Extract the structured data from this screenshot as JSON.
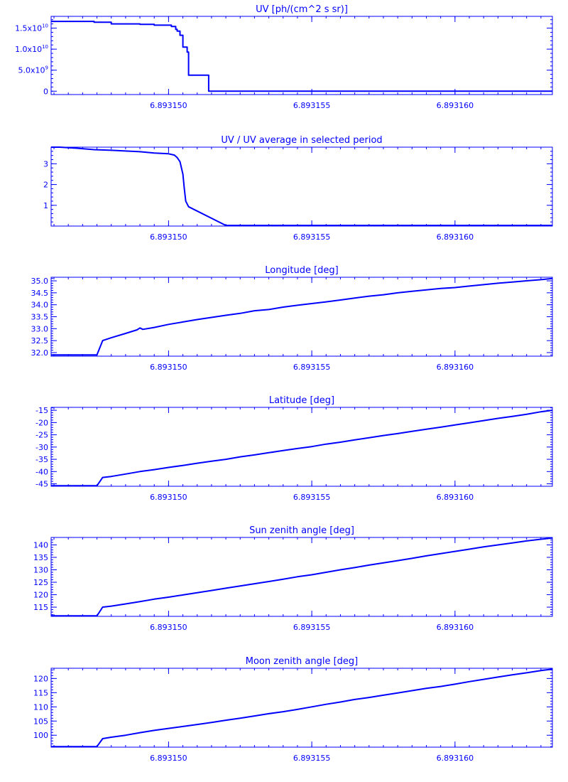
{
  "colors": {
    "line": "#0000ff",
    "background": "#ffffff"
  },
  "chart_data": [
    {
      "type": "line",
      "title": "UV [ph/(cm^2 s sr)]",
      "xlabel": "",
      "ylabel": "",
      "xlim": [
        6.8931459,
        6.8931634
      ],
      "ylim": [
        -800000000.0,
        17800000000.0
      ],
      "x_ticks": [
        6.89315,
        6.893155,
        6.89316
      ],
      "x_tick_labels": [
        "6.893150",
        "6.893155",
        "6.893160"
      ],
      "y_ticks": [
        0,
        5000000000.0,
        10000000000.0,
        15000000000.0
      ],
      "y_tick_labels": [
        {
          "text": "0",
          "mantissa": "0",
          "exponent": ""
        },
        {
          "text": "5.0x10^9",
          "mantissa": "5.0x10",
          "exponent": "9"
        },
        {
          "text": "1.0x10^10",
          "mantissa": "1.0x10",
          "exponent": "10"
        },
        {
          "text": "1.5x10^10",
          "mantissa": "1.5x10",
          "exponent": "10"
        }
      ],
      "grid": false,
      "step": true,
      "series": [
        {
          "x": [
            6.8931459,
            6.8931462,
            6.8931474,
            6.893148,
            6.893149,
            6.8931495,
            6.8931501,
            6.89315025,
            6.8931503,
            6.8931504,
            6.8931505,
            6.89315065,
            6.8931507,
            6.8931514,
            6.8931634
          ],
          "y": [
            16600000000.0,
            16600000000.0,
            16400000000.0,
            16000000000.0,
            15900000000.0,
            15700000000.0,
            15400000000.0,
            14700000000.0,
            14300000000.0,
            13300000000.0,
            10500000000.0,
            9300000000.0,
            3800000000.0,
            0,
            0
          ]
        }
      ]
    },
    {
      "type": "line",
      "title": "UV / UV average in selected period",
      "xlabel": "",
      "ylabel": "",
      "xlim": [
        6.8931459,
        6.8931634
      ],
      "ylim": [
        0,
        3.8
      ],
      "x_ticks": [
        6.89315,
        6.893155,
        6.89316
      ],
      "x_tick_labels": [
        "6.893150",
        "6.893155",
        "6.893160"
      ],
      "y_ticks": [
        1,
        2,
        3
      ],
      "y_tick_labels": [
        {
          "text": "1",
          "mantissa": "1",
          "exponent": ""
        },
        {
          "text": "2",
          "mantissa": "2",
          "exponent": ""
        },
        {
          "text": "3",
          "mantissa": "3",
          "exponent": ""
        }
      ],
      "grid": false,
      "series": [
        {
          "x": [
            6.8931459,
            6.8931462,
            6.8931468,
            6.8931474,
            6.893148,
            6.893149,
            6.8931495,
            6.89315,
            6.8931502,
            6.8931503,
            6.8931504,
            6.8931505,
            6.89315055,
            6.8931506,
            6.8931507,
            6.893152,
            6.8931634
          ],
          "y": [
            3.8,
            3.8,
            3.75,
            3.68,
            3.65,
            3.58,
            3.52,
            3.48,
            3.42,
            3.3,
            3.1,
            2.5,
            1.8,
            1.2,
            0.93,
            0.03,
            0.03
          ]
        }
      ]
    },
    {
      "type": "line",
      "title": "Longitude [deg]",
      "xlabel": "",
      "ylabel": "",
      "xlim": [
        6.8931459,
        6.8931634
      ],
      "ylim": [
        31.85,
        35.15
      ],
      "x_ticks": [
        6.89315,
        6.893155,
        6.89316
      ],
      "x_tick_labels": [
        "6.893150",
        "6.893155",
        "6.893160"
      ],
      "y_ticks": [
        32.0,
        32.5,
        33.0,
        33.5,
        34.0,
        34.5,
        35.0
      ],
      "y_tick_labels": [
        {
          "text": "32.0",
          "mantissa": "32.0",
          "exponent": ""
        },
        {
          "text": "32.5",
          "mantissa": "32.5",
          "exponent": ""
        },
        {
          "text": "33.0",
          "mantissa": "33.0",
          "exponent": ""
        },
        {
          "text": "33.5",
          "mantissa": "33.5",
          "exponent": ""
        },
        {
          "text": "34.0",
          "mantissa": "34.0",
          "exponent": ""
        },
        {
          "text": "34.5",
          "mantissa": "34.5",
          "exponent": ""
        },
        {
          "text": "35.0",
          "mantissa": "35.0",
          "exponent": ""
        }
      ],
      "grid": false,
      "series": [
        {
          "x": [
            6.8931459,
            6.8931475,
            6.8931477,
            6.893148,
            6.8931485,
            6.8931489,
            6.893149,
            6.8931491,
            6.8931495,
            6.89315,
            6.8931505,
            6.893151,
            6.8931515,
            6.893152,
            6.8931525,
            6.893153,
            6.8931535,
            6.893154,
            6.8931545,
            6.893155,
            6.8931555,
            6.893156,
            6.8931565,
            6.893157,
            6.8931575,
            6.893158,
            6.8931585,
            6.893159,
            6.8931595,
            6.89316,
            6.8931605,
            6.893161,
            6.8931615,
            6.893162,
            6.8931625,
            6.893163,
            6.8931634
          ],
          "y": [
            31.9,
            31.9,
            32.5,
            32.62,
            32.8,
            32.95,
            33.03,
            32.97,
            33.05,
            33.18,
            33.28,
            33.38,
            33.47,
            33.56,
            33.64,
            33.75,
            33.8,
            33.9,
            33.98,
            34.05,
            34.12,
            34.2,
            34.28,
            34.36,
            34.42,
            34.5,
            34.56,
            34.62,
            34.68,
            34.72,
            34.78,
            34.84,
            34.9,
            34.95,
            35.0,
            35.05,
            35.1
          ]
        }
      ]
    },
    {
      "type": "line",
      "title": "Latitude [deg]",
      "xlabel": "",
      "ylabel": "",
      "xlim": [
        6.8931459,
        6.8931634
      ],
      "ylim": [
        -46.0,
        -13.8
      ],
      "x_ticks": [
        6.89315,
        6.893155,
        6.89316
      ],
      "x_tick_labels": [
        "6.893150",
        "6.893155",
        "6.893160"
      ],
      "y_ticks": [
        -45,
        -40,
        -35,
        -30,
        -25,
        -20,
        -15
      ],
      "y_tick_labels": [
        {
          "text": "-45",
          "mantissa": "-45",
          "exponent": ""
        },
        {
          "text": "-40",
          "mantissa": "-40",
          "exponent": ""
        },
        {
          "text": "-35",
          "mantissa": "-35",
          "exponent": ""
        },
        {
          "text": "-30",
          "mantissa": "-30",
          "exponent": ""
        },
        {
          "text": "-25",
          "mantissa": "-25",
          "exponent": ""
        },
        {
          "text": "-20",
          "mantissa": "-20",
          "exponent": ""
        },
        {
          "text": "-15",
          "mantissa": "-15",
          "exponent": ""
        }
      ],
      "grid": false,
      "series": [
        {
          "x": [
            6.8931459,
            6.8931475,
            6.8931477,
            6.893148,
            6.8931485,
            6.893149,
            6.8931495,
            6.89315,
            6.8931505,
            6.893151,
            6.8931515,
            6.893152,
            6.8931525,
            6.893153,
            6.8931535,
            6.893154,
            6.8931545,
            6.893155,
            6.8931555,
            6.893156,
            6.8931565,
            6.893157,
            6.8931575,
            6.893158,
            6.8931585,
            6.893159,
            6.8931595,
            6.89316,
            6.8931605,
            6.893161,
            6.8931615,
            6.893162,
            6.8931625,
            6.893163,
            6.8931634
          ],
          "y": [
            -45.8,
            -45.8,
            -42.4,
            -42.0,
            -41.0,
            -40.0,
            -39.2,
            -38.3,
            -37.5,
            -36.6,
            -35.8,
            -35.0,
            -34.0,
            -33.2,
            -32.3,
            -31.4,
            -30.6,
            -29.8,
            -28.8,
            -28.0,
            -27.1,
            -26.2,
            -25.3,
            -24.5,
            -23.6,
            -22.7,
            -21.9,
            -21.0,
            -20.1,
            -19.2,
            -18.3,
            -17.5,
            -16.6,
            -15.6,
            -15.0
          ]
        }
      ]
    },
    {
      "type": "line",
      "title": "Sun zenith angle [deg]",
      "xlabel": "",
      "ylabel": "",
      "xlim": [
        6.8931459,
        6.8931634
      ],
      "ylim": [
        111.3,
        143
      ],
      "x_ticks": [
        6.89315,
        6.893155,
        6.89316
      ],
      "x_tick_labels": [
        "6.893150",
        "6.893155",
        "6.893160"
      ],
      "y_ticks": [
        115,
        120,
        125,
        130,
        135,
        140
      ],
      "y_tick_labels": [
        {
          "text": "115",
          "mantissa": "115",
          "exponent": ""
        },
        {
          "text": "120",
          "mantissa": "120",
          "exponent": ""
        },
        {
          "text": "125",
          "mantissa": "125",
          "exponent": ""
        },
        {
          "text": "130",
          "mantissa": "130",
          "exponent": ""
        },
        {
          "text": "135",
          "mantissa": "135",
          "exponent": ""
        },
        {
          "text": "140",
          "mantissa": "140",
          "exponent": ""
        }
      ],
      "grid": false,
      "series": [
        {
          "x": [
            6.8931459,
            6.8931475,
            6.8931477,
            6.893148,
            6.8931485,
            6.893149,
            6.8931495,
            6.89315,
            6.8931505,
            6.893151,
            6.8931515,
            6.893152,
            6.8931525,
            6.893153,
            6.8931535,
            6.893154,
            6.8931545,
            6.893155,
            6.8931555,
            6.893156,
            6.8931565,
            6.893157,
            6.8931575,
            6.893158,
            6.8931585,
            6.893159,
            6.8931595,
            6.89316,
            6.8931605,
            6.893161,
            6.8931615,
            6.893162,
            6.8931625,
            6.893163,
            6.8931634
          ],
          "y": [
            111.5,
            111.5,
            115.0,
            115.4,
            116.3,
            117.2,
            118.2,
            119.0,
            119.9,
            120.8,
            121.7,
            122.6,
            123.5,
            124.4,
            125.3,
            126.2,
            127.2,
            128.0,
            129.0,
            130.0,
            130.9,
            131.9,
            132.8,
            133.7,
            134.6,
            135.6,
            136.5,
            137.4,
            138.3,
            139.2,
            140.0,
            140.8,
            141.6,
            142.3,
            142.8
          ]
        }
      ]
    },
    {
      "type": "line",
      "title": "Moon zenith angle [deg]",
      "xlabel": "",
      "ylabel": "",
      "xlim": [
        6.8931459,
        6.8931634
      ],
      "ylim": [
        95.8,
        123.6
      ],
      "x_ticks": [
        6.89315,
        6.893155,
        6.89316
      ],
      "x_tick_labels": [
        "6.893150",
        "6.893155",
        "6.893160"
      ],
      "y_ticks": [
        100,
        105,
        110,
        115,
        120
      ],
      "y_tick_labels": [
        {
          "text": "100",
          "mantissa": "100",
          "exponent": ""
        },
        {
          "text": "105",
          "mantissa": "105",
          "exponent": ""
        },
        {
          "text": "110",
          "mantissa": "110",
          "exponent": ""
        },
        {
          "text": "115",
          "mantissa": "115",
          "exponent": ""
        },
        {
          "text": "120",
          "mantissa": "120",
          "exponent": ""
        }
      ],
      "grid": false,
      "series": [
        {
          "x": [
            6.8931459,
            6.8931475,
            6.8931477,
            6.893148,
            6.8931485,
            6.893149,
            6.8931495,
            6.89315,
            6.8931505,
            6.893151,
            6.8931515,
            6.893152,
            6.8931525,
            6.893153,
            6.8931535,
            6.893154,
            6.8931545,
            6.893155,
            6.8931555,
            6.893156,
            6.8931565,
            6.893157,
            6.8931575,
            6.893158,
            6.8931585,
            6.893159,
            6.8931595,
            6.89316,
            6.8931605,
            6.893161,
            6.8931615,
            6.893162,
            6.8931625,
            6.893163,
            6.8931634
          ],
          "y": [
            96.0,
            96.0,
            98.8,
            99.3,
            100.0,
            100.9,
            101.7,
            102.4,
            103.1,
            103.8,
            104.5,
            105.3,
            106.0,
            106.8,
            107.6,
            108.3,
            109.1,
            110.0,
            110.9,
            111.7,
            112.6,
            113.3,
            114.1,
            114.9,
            115.7,
            116.5,
            117.2,
            118.0,
            118.9,
            119.7,
            120.5,
            121.3,
            122.0,
            122.8,
            123.3
          ]
        }
      ]
    }
  ]
}
